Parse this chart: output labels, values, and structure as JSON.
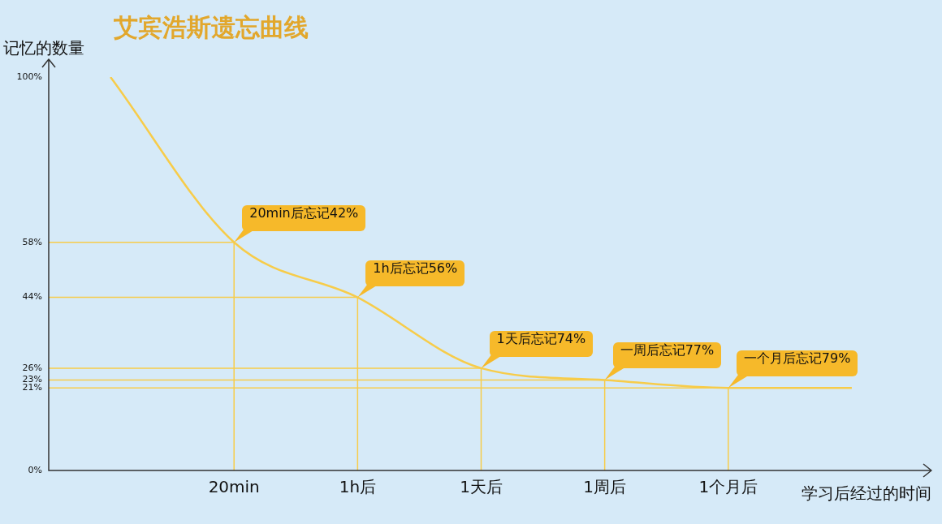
{
  "chart_data": {
    "type": "line",
    "title": "艾宾浩斯遗忘曲线",
    "xlabel": "学习后经过的时间",
    "ylabel": "记忆的数量",
    "categories": [
      null,
      "20min",
      "1h后",
      "1天后",
      "1周后",
      "1个月后",
      null
    ],
    "series": [
      {
        "color": "#f7cc4a",
        "values": [
          100,
          58,
          44,
          26,
          23,
          21,
          21
        ]
      }
    ],
    "ylim": [
      0,
      100
    ],
    "yticks": [
      {
        "value": 0,
        "label": "0%"
      },
      {
        "value": 21,
        "label": "21%"
      },
      {
        "value": 23,
        "label": "23%"
      },
      {
        "value": 26,
        "label": "26%"
      },
      {
        "value": 44,
        "label": "44%"
      },
      {
        "value": 58,
        "label": "58%"
      },
      {
        "value": 100,
        "label": "100%"
      }
    ],
    "marker": "none",
    "legend": false,
    "grid": false,
    "ref_lines": [
      {
        "axis": "y",
        "value": 58,
        "color": "#f7cc4a"
      },
      {
        "axis": "y",
        "value": 44,
        "color": "#f7cc4a"
      },
      {
        "axis": "y",
        "value": 26,
        "color": "#f7cc4a"
      },
      {
        "axis": "y",
        "value": 23,
        "color": "#f7cc4a"
      },
      {
        "axis": "y",
        "value": 21,
        "color": "#f7cc4a"
      },
      {
        "axis": "x",
        "value": "20min",
        "color": "#f7cc4a"
      },
      {
        "axis": "x",
        "value": "1h后",
        "color": "#f7cc4a"
      },
      {
        "axis": "x",
        "value": "1天后",
        "color": "#f7cc4a"
      },
      {
        "axis": "x",
        "value": "1周后",
        "color": "#f7cc4a"
      },
      {
        "axis": "x",
        "value": "1个月后",
        "color": "#f7cc4a"
      }
    ],
    "annotations": [
      {
        "text": "20min后忘记42%",
        "x": "20min",
        "y": 58
      },
      {
        "text": "1h后忘记56%",
        "x": "1h后",
        "y": 44
      },
      {
        "text": "1天后忘记74%",
        "x": "1天后",
        "y": 26
      },
      {
        "text": "一周后忘记77%",
        "x": "1周后",
        "y": 23
      },
      {
        "text": "一个月后忘记79%",
        "x": "1个月后",
        "y": 21
      }
    ]
  }
}
